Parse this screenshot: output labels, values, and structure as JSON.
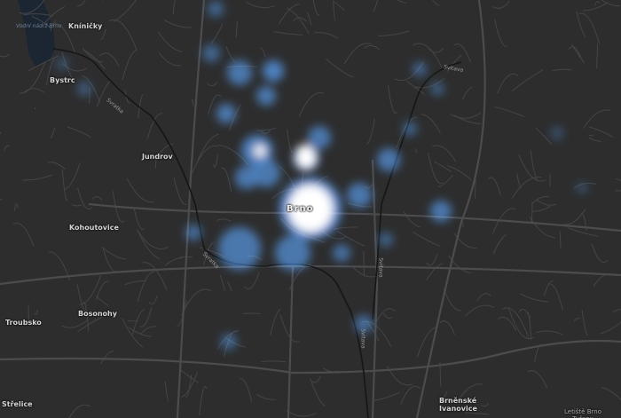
{
  "map": {
    "colors": {
      "background": "#2d2d2e",
      "roads": "#444446",
      "major_roads": "#4b4b4d",
      "water": "#1c2633",
      "river": "#1a1a1a",
      "heat_low": "#2a6fc0",
      "heat_high": "#ffffff"
    },
    "water_label": "Vodní nádrž Brno",
    "rivers": [
      "Svratka",
      "Svitava",
      "Svratka",
      "Svitava"
    ],
    "places": {
      "kninicky": "Kníničky",
      "bystrc": "Bystrc",
      "jundrov": "Jundrov",
      "brno": "Brno",
      "kohoutovice": "Kohoutovice",
      "bosonohy": "Bosonohy",
      "troubsko": "Troubsko",
      "strelice": "Střelice",
      "brnenske_ivanovice": "Brněnské Ivanovice",
      "letiste": "Letiště Brno Tuřany"
    },
    "layer": "heatmap"
  }
}
